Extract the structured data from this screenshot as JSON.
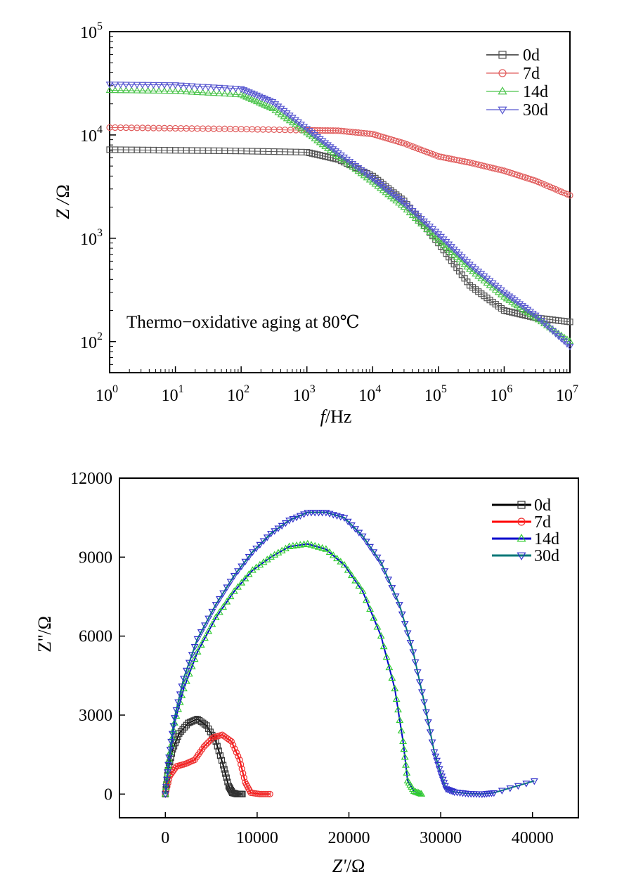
{
  "chart_data": [
    {
      "type": "line",
      "ylabel_text": "Z /",
      "ylabel_unit": "Ω",
      "xlabel_italic": "f",
      "xlabel_unit": "/Hz",
      "xscale": "log",
      "yscale": "log",
      "xlim": [
        1,
        10000000
      ],
      "ylim": [
        50,
        100000
      ],
      "xticks": [
        {
          "base": "10",
          "exp": "0"
        },
        {
          "base": "10",
          "exp": "1"
        },
        {
          "base": "10",
          "exp": "2"
        },
        {
          "base": "10",
          "exp": "3"
        },
        {
          "base": "10",
          "exp": "4"
        },
        {
          "base": "10",
          "exp": "5"
        },
        {
          "base": "10",
          "exp": "6"
        },
        {
          "base": "10",
          "exp": "7"
        }
      ],
      "yticks": [
        {
          "base": "10",
          "exp": "2"
        },
        {
          "base": "10",
          "exp": "3"
        },
        {
          "base": "10",
          "exp": "4"
        },
        {
          "base": "10",
          "exp": "5"
        }
      ],
      "annotation": "Thermo−oxidative aging at 80℃",
      "legend_position": "top-right",
      "series": [
        {
          "name": "0d",
          "color": "#555555",
          "marker": "square",
          "x": [
            1,
            10,
            100,
            1000,
            3000,
            10000,
            30000,
            100000,
            300000,
            1000000,
            3000000,
            10000000
          ],
          "y": [
            7200,
            7100,
            7000,
            6800,
            5800,
            4000,
            2300,
            900,
            350,
            200,
            170,
            155
          ]
        },
        {
          "name": "7d",
          "color": "#e05a5a",
          "marker": "circle",
          "x": [
            1,
            10,
            100,
            1000,
            3000,
            10000,
            30000,
            100000,
            300000,
            1000000,
            3000000,
            10000000
          ],
          "y": [
            11800,
            11600,
            11400,
            11100,
            11000,
            10200,
            8300,
            6200,
            5400,
            4500,
            3600,
            2600
          ]
        },
        {
          "name": "14d",
          "color": "#4cc44c",
          "marker": "triangle-up",
          "x": [
            1,
            10,
            100,
            300,
            1000,
            3000,
            10000,
            30000,
            100000,
            300000,
            1000000,
            3000000,
            10000000
          ],
          "y": [
            27000,
            26500,
            24500,
            18000,
            10500,
            6200,
            3500,
            2000,
            950,
            500,
            270,
            170,
            100
          ]
        },
        {
          "name": "30d",
          "color": "#5858d0",
          "marker": "triangle-down",
          "x": [
            1,
            10,
            100,
            300,
            1000,
            3000,
            10000,
            30000,
            100000,
            300000,
            1000000,
            3000000,
            10000000
          ],
          "y": [
            31000,
            30500,
            28000,
            21000,
            11500,
            6700,
            3800,
            2200,
            1100,
            560,
            300,
            180,
            90
          ]
        }
      ]
    },
    {
      "type": "scatter",
      "ylabel": "Z''/Ω",
      "xlabel_italic": "Z'",
      "xlabel_unit": "/Ω",
      "xlim": [
        -5000,
        45000
      ],
      "ylim": [
        -900,
        12000
      ],
      "xticks": [
        "0",
        "10000",
        "20000",
        "30000",
        "40000"
      ],
      "xtick_values": [
        0,
        10000,
        20000,
        30000,
        40000
      ],
      "yticks": [
        "0",
        "3000",
        "6000",
        "9000",
        "12000"
      ],
      "ytick_values": [
        0,
        3000,
        6000,
        9000,
        12000
      ],
      "legend_position": "top-right",
      "series": [
        {
          "name": "0d",
          "line_color": "#000000",
          "marker_color": "#333333",
          "marker": "square",
          "x": [
            0,
            300,
            800,
            1500,
            2500,
            3500,
            4500,
            5500,
            6300,
            6900,
            7300,
            7800,
            8400
          ],
          "y": [
            0,
            900,
            1700,
            2300,
            2700,
            2850,
            2600,
            2000,
            1100,
            300,
            50,
            0,
            0
          ]
        },
        {
          "name": "7d",
          "line_color": "#ff0000",
          "marker_color": "#ee3333",
          "marker": "circle",
          "x": [
            0,
            500,
            1200,
            2200,
            3200,
            4200,
            5200,
            6200,
            7200,
            8100,
            8700,
            9300,
            10300,
            11400
          ],
          "y": [
            0,
            700,
            1050,
            1150,
            1300,
            1800,
            2150,
            2250,
            2000,
            1300,
            450,
            50,
            0,
            0
          ]
        },
        {
          "name": "14d",
          "line_color": "#0000cc",
          "marker_color": "#33cc33",
          "marker": "triangle-up",
          "x": [
            0,
            400,
            1000,
            2000,
            3500,
            5500,
            7500,
            9500,
            11500,
            13500,
            15500,
            17500,
            19500,
            21500,
            23500,
            25000,
            25900,
            26400,
            27100,
            27900
          ],
          "y": [
            0,
            1300,
            2700,
            4000,
            5400,
            6700,
            7700,
            8500,
            9000,
            9400,
            9500,
            9300,
            8700,
            7700,
            6000,
            4000,
            2000,
            500,
            100,
            0
          ]
        },
        {
          "name": "30d",
          "line_color": "#007777",
          "marker_color": "#3333cc",
          "marker": "triangle-down",
          "x": [
            0,
            400,
            1000,
            2000,
            3500,
            5500,
            7500,
            9500,
            11500,
            13500,
            15500,
            17500,
            19500,
            21500,
            23500,
            25500,
            27000,
            28200,
            29300,
            30000,
            30600,
            31500,
            33000,
            34500,
            35800,
            40200
          ],
          "y": [
            0,
            1400,
            2900,
            4400,
            5900,
            7200,
            8300,
            9200,
            9900,
            10400,
            10700,
            10700,
            10500,
            9800,
            8800,
            7200,
            5400,
            3500,
            1600,
            800,
            200,
            80,
            20,
            0,
            50,
            500
          ]
        }
      ]
    }
  ]
}
